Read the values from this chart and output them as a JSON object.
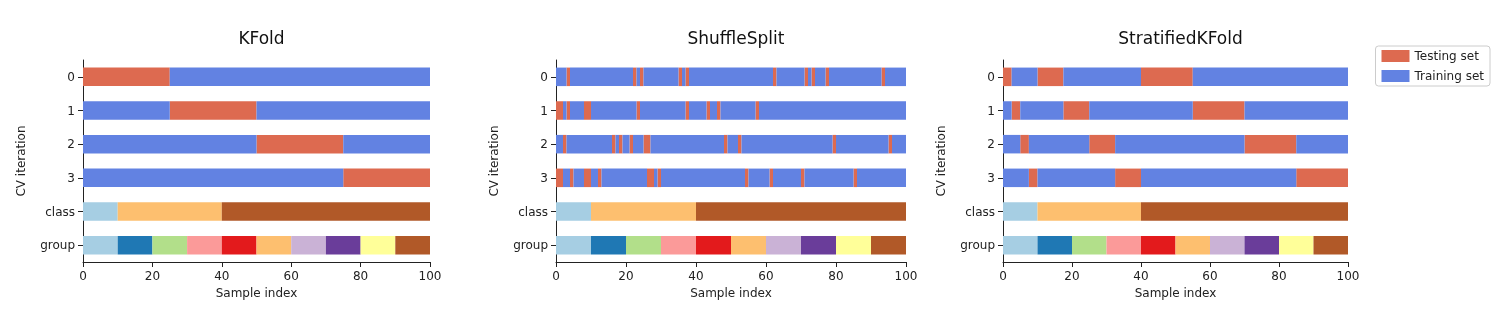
{
  "chart_data": [
    {
      "type": "bar",
      "orientation": "horizontal",
      "title": "KFold",
      "xlabel": "Sample index",
      "ylabel": "CV iteration",
      "categories": [
        "0",
        "1",
        "2",
        "3",
        "class",
        "group"
      ],
      "xlim": [
        0,
        100
      ],
      "xticks": [
        0,
        20,
        40,
        60,
        80,
        100
      ],
      "legend": false,
      "series": [
        {
          "color": "#dd6a50",
          "base": [
            0,
            25,
            50,
            75,
            null,
            null
          ],
          "values": [
            25,
            25,
            25,
            25,
            null,
            null
          ]
        },
        {
          "color": "#6282e2",
          "base": [
            25,
            0,
            0,
            0,
            null,
            null
          ],
          "values": [
            75,
            25,
            50,
            75,
            null,
            null
          ]
        },
        {
          "color": "#6282e2",
          "base": [
            null,
            50,
            75,
            null,
            null,
            null
          ],
          "values": [
            null,
            50,
            25,
            null,
            null,
            null
          ]
        },
        {
          "color": "#a6cee3",
          "base": [
            null,
            null,
            null,
            null,
            0,
            null
          ],
          "values": [
            null,
            null,
            null,
            null,
            10,
            null
          ]
        },
        {
          "color": "#fdbf6f",
          "base": [
            null,
            null,
            null,
            null,
            10,
            null
          ],
          "values": [
            null,
            null,
            null,
            null,
            30,
            null
          ]
        },
        {
          "color": "#b15928",
          "base": [
            null,
            null,
            null,
            null,
            40,
            null
          ],
          "values": [
            null,
            null,
            null,
            null,
            60,
            null
          ]
        },
        {
          "color": "#a6cee3",
          "base": [
            null,
            null,
            null,
            null,
            null,
            0
          ],
          "values": [
            null,
            null,
            null,
            null,
            null,
            10
          ]
        },
        {
          "color": "#1f78b4",
          "base": [
            null,
            null,
            null,
            null,
            null,
            10
          ],
          "values": [
            null,
            null,
            null,
            null,
            null,
            10
          ]
        },
        {
          "color": "#b2df8a",
          "base": [
            null,
            null,
            null,
            null,
            null,
            20
          ],
          "values": [
            null,
            null,
            null,
            null,
            null,
            10
          ]
        },
        {
          "color": "#fb9a99",
          "base": [
            null,
            null,
            null,
            null,
            null,
            30
          ],
          "values": [
            null,
            null,
            null,
            null,
            null,
            10
          ]
        },
        {
          "color": "#e31a1c",
          "base": [
            null,
            null,
            null,
            null,
            null,
            40
          ],
          "values": [
            null,
            null,
            null,
            null,
            null,
            10
          ]
        },
        {
          "color": "#fdbf6f",
          "base": [
            null,
            null,
            null,
            null,
            null,
            50
          ],
          "values": [
            null,
            null,
            null,
            null,
            null,
            10
          ]
        },
        {
          "color": "#cab2d6",
          "base": [
            null,
            null,
            null,
            null,
            null,
            60
          ],
          "values": [
            null,
            null,
            null,
            null,
            null,
            10
          ]
        },
        {
          "color": "#6a3d9a",
          "base": [
            null,
            null,
            null,
            null,
            null,
            70
          ],
          "values": [
            null,
            null,
            null,
            null,
            null,
            10
          ]
        },
        {
          "color": "#ffff99",
          "base": [
            null,
            null,
            null,
            null,
            null,
            80
          ],
          "values": [
            null,
            null,
            null,
            null,
            null,
            10
          ]
        },
        {
          "color": "#b15928",
          "base": [
            null,
            null,
            null,
            null,
            null,
            90
          ],
          "values": [
            null,
            null,
            null,
            null,
            null,
            10
          ]
        }
      ]
    },
    {
      "type": "bar",
      "orientation": "horizontal",
      "title": "ShuffleSplit",
      "xlabel": "Sample index",
      "ylabel": "CV iteration",
      "categories": [
        "0",
        "1",
        "2",
        "3",
        "class",
        "group"
      ],
      "xlim": [
        0,
        100
      ],
      "xticks": [
        0,
        20,
        40,
        60,
        80,
        100
      ],
      "legend": false,
      "series": [
        {
          "color": "#dd6a50",
          "base": [
            3,
            0,
            2,
            0,
            null,
            null
          ],
          "values": [
            1,
            2,
            1,
            2,
            null,
            null
          ]
        },
        {
          "color": "#dd6a50",
          "base": [
            22,
            3,
            16,
            4,
            null,
            null
          ],
          "values": [
            1,
            1,
            1,
            1,
            null,
            null
          ]
        },
        {
          "color": "#dd6a50",
          "base": [
            24,
            8,
            18,
            8,
            null,
            null
          ],
          "values": [
            1,
            2,
            1,
            2,
            null,
            null
          ]
        },
        {
          "color": "#dd6a50",
          "base": [
            35,
            23,
            21,
            12,
            null,
            null
          ],
          "values": [
            1,
            1,
            1,
            1,
            null,
            null
          ]
        },
        {
          "color": "#dd6a50",
          "base": [
            37,
            37,
            25,
            26,
            null,
            null
          ],
          "values": [
            1,
            1,
            2,
            2,
            null,
            null
          ]
        },
        {
          "color": "#dd6a50",
          "base": [
            62,
            43,
            48,
            29,
            null,
            null
          ],
          "values": [
            1,
            1,
            1,
            1,
            null,
            null
          ]
        },
        {
          "color": "#dd6a50",
          "base": [
            71,
            46,
            52,
            54,
            null,
            null
          ],
          "values": [
            1,
            1,
            1,
            1,
            null,
            null
          ]
        },
        {
          "color": "#dd6a50",
          "base": [
            73,
            57,
            79,
            61,
            null,
            null
          ],
          "values": [
            1,
            1,
            1,
            1,
            null,
            null
          ]
        },
        {
          "color": "#dd6a50",
          "base": [
            77,
            null,
            95,
            70,
            null,
            null
          ],
          "values": [
            1,
            null,
            1,
            1,
            null,
            null
          ]
        },
        {
          "color": "#dd6a50",
          "base": [
            93,
            null,
            null,
            85,
            null,
            null
          ],
          "values": [
            1,
            null,
            null,
            1,
            null,
            null
          ]
        },
        {
          "color": "#6282e2",
          "base": [
            0,
            2,
            0,
            2,
            null,
            null
          ],
          "values": [
            3,
            1,
            2,
            2,
            null,
            null
          ]
        },
        {
          "color": "#6282e2",
          "base": [
            4,
            4,
            3,
            5,
            null,
            null
          ],
          "values": [
            18,
            4,
            13,
            3,
            null,
            null
          ]
        },
        {
          "color": "#6282e2",
          "base": [
            23,
            10,
            17,
            10,
            null,
            null
          ],
          "values": [
            1,
            13,
            1,
            2,
            null,
            null
          ]
        },
        {
          "color": "#6282e2",
          "base": [
            25,
            24,
            19,
            13,
            null,
            null
          ],
          "values": [
            10,
            13,
            2,
            13,
            null,
            null
          ]
        },
        {
          "color": "#6282e2",
          "base": [
            36,
            38,
            22,
            28,
            null,
            null
          ],
          "values": [
            1,
            5,
            3,
            1,
            null,
            null
          ]
        },
        {
          "color": "#6282e2",
          "base": [
            38,
            44,
            27,
            30,
            null,
            null
          ],
          "values": [
            24,
            2,
            21,
            24,
            null,
            null
          ]
        },
        {
          "color": "#6282e2",
          "base": [
            63,
            47,
            49,
            55,
            null,
            null
          ],
          "values": [
            8,
            10,
            3,
            6,
            null,
            null
          ]
        },
        {
          "color": "#6282e2",
          "base": [
            72,
            58,
            53,
            62,
            null,
            null
          ],
          "values": [
            1,
            42,
            26,
            8,
            null,
            null
          ]
        },
        {
          "color": "#6282e2",
          "base": [
            74,
            null,
            80,
            71,
            null,
            null
          ],
          "values": [
            3,
            null,
            15,
            14,
            null,
            null
          ]
        },
        {
          "color": "#6282e2",
          "base": [
            78,
            null,
            96,
            86,
            null,
            null
          ],
          "values": [
            15,
            null,
            4,
            14,
            null,
            null
          ]
        },
        {
          "color": "#6282e2",
          "base": [
            94,
            null,
            null,
            null,
            null,
            null
          ],
          "values": [
            6,
            null,
            null,
            null,
            null,
            null
          ]
        },
        {
          "color": "#a6cee3",
          "base": [
            null,
            null,
            null,
            null,
            0,
            null
          ],
          "values": [
            null,
            null,
            null,
            null,
            10,
            null
          ]
        },
        {
          "color": "#fdbf6f",
          "base": [
            null,
            null,
            null,
            null,
            10,
            null
          ],
          "values": [
            null,
            null,
            null,
            null,
            30,
            null
          ]
        },
        {
          "color": "#b15928",
          "base": [
            null,
            null,
            null,
            null,
            40,
            null
          ],
          "values": [
            null,
            null,
            null,
            null,
            60,
            null
          ]
        },
        {
          "color": "#a6cee3",
          "base": [
            null,
            null,
            null,
            null,
            null,
            0
          ],
          "values": [
            null,
            null,
            null,
            null,
            null,
            10
          ]
        },
        {
          "color": "#1f78b4",
          "base": [
            null,
            null,
            null,
            null,
            null,
            10
          ],
          "values": [
            null,
            null,
            null,
            null,
            null,
            10
          ]
        },
        {
          "color": "#b2df8a",
          "base": [
            null,
            null,
            null,
            null,
            null,
            20
          ],
          "values": [
            null,
            null,
            null,
            null,
            null,
            10
          ]
        },
        {
          "color": "#fb9a99",
          "base": [
            null,
            null,
            null,
            null,
            null,
            30
          ],
          "values": [
            null,
            null,
            null,
            null,
            null,
            10
          ]
        },
        {
          "color": "#e31a1c",
          "base": [
            null,
            null,
            null,
            null,
            null,
            40
          ],
          "values": [
            null,
            null,
            null,
            null,
            null,
            10
          ]
        },
        {
          "color": "#fdbf6f",
          "base": [
            null,
            null,
            null,
            null,
            null,
            50
          ],
          "values": [
            null,
            null,
            null,
            null,
            null,
            10
          ]
        },
        {
          "color": "#cab2d6",
          "base": [
            null,
            null,
            null,
            null,
            null,
            60
          ],
          "values": [
            null,
            null,
            null,
            null,
            null,
            10
          ]
        },
        {
          "color": "#6a3d9a",
          "base": [
            null,
            null,
            null,
            null,
            null,
            70
          ],
          "values": [
            null,
            null,
            null,
            null,
            null,
            10
          ]
        },
        {
          "color": "#ffff99",
          "base": [
            null,
            null,
            null,
            null,
            null,
            80
          ],
          "values": [
            null,
            null,
            null,
            null,
            null,
            10
          ]
        },
        {
          "color": "#b15928",
          "base": [
            null,
            null,
            null,
            null,
            null,
            90
          ],
          "values": [
            null,
            null,
            null,
            null,
            null,
            10
          ]
        }
      ]
    },
    {
      "type": "bar",
      "orientation": "horizontal",
      "title": "StratifiedKFold",
      "xlabel": "Sample index",
      "ylabel": "CV iteration",
      "categories": [
        "0",
        "1",
        "2",
        "3",
        "class",
        "group"
      ],
      "xlim": [
        0,
        100
      ],
      "xticks": [
        0,
        20,
        40,
        60,
        80,
        100
      ],
      "legend": "top right",
      "series": [
        {
          "name": "Testing set",
          "color": "#dd6a50",
          "base": [
            0,
            2.5,
            5,
            7.5,
            null,
            null
          ],
          "values": [
            2.5,
            2.5,
            2.5,
            2.5,
            null,
            null
          ]
        },
        {
          "color": "#dd6a50",
          "base": [
            10,
            17.5,
            25,
            32.5,
            null,
            null
          ],
          "values": [
            7.5,
            7.5,
            7.5,
            7.5,
            null,
            null
          ]
        },
        {
          "color": "#dd6a50",
          "base": [
            40,
            55,
            70,
            85,
            null,
            null
          ],
          "values": [
            15,
            15,
            15,
            15,
            null,
            null
          ]
        },
        {
          "name": "Training set",
          "color": "#6282e2",
          "base": [
            2.5,
            0,
            0,
            0,
            null,
            null
          ],
          "values": [
            7.5,
            2.5,
            5,
            7.5,
            null,
            null
          ]
        },
        {
          "color": "#6282e2",
          "base": [
            17.5,
            5,
            7.5,
            10,
            null,
            null
          ],
          "values": [
            22.5,
            12.5,
            17.5,
            22.5,
            null,
            null
          ]
        },
        {
          "color": "#6282e2",
          "base": [
            55,
            25,
            32.5,
            40,
            null,
            null
          ],
          "values": [
            45,
            30,
            37.5,
            45,
            null,
            null
          ]
        },
        {
          "color": "#6282e2",
          "base": [
            null,
            70,
            85,
            null,
            null,
            null
          ],
          "values": [
            null,
            30,
            15,
            null,
            null,
            null
          ]
        },
        {
          "color": "#a6cee3",
          "base": [
            null,
            null,
            null,
            null,
            0,
            null
          ],
          "values": [
            null,
            null,
            null,
            null,
            10,
            null
          ]
        },
        {
          "color": "#fdbf6f",
          "base": [
            null,
            null,
            null,
            null,
            10,
            null
          ],
          "values": [
            null,
            null,
            null,
            null,
            30,
            null
          ]
        },
        {
          "color": "#b15928",
          "base": [
            null,
            null,
            null,
            null,
            40,
            null
          ],
          "values": [
            null,
            null,
            null,
            null,
            60,
            null
          ]
        },
        {
          "color": "#a6cee3",
          "base": [
            null,
            null,
            null,
            null,
            null,
            0
          ],
          "values": [
            null,
            null,
            null,
            null,
            null,
            10
          ]
        },
        {
          "color": "#1f78b4",
          "base": [
            null,
            null,
            null,
            null,
            null,
            10
          ],
          "values": [
            null,
            null,
            null,
            null,
            null,
            10
          ]
        },
        {
          "color": "#b2df8a",
          "base": [
            null,
            null,
            null,
            null,
            null,
            20
          ],
          "values": [
            null,
            null,
            null,
            null,
            null,
            10
          ]
        },
        {
          "color": "#fb9a99",
          "base": [
            null,
            null,
            null,
            null,
            null,
            30
          ],
          "values": [
            null,
            null,
            null,
            null,
            null,
            10
          ]
        },
        {
          "color": "#e31a1c",
          "base": [
            null,
            null,
            null,
            null,
            null,
            40
          ],
          "values": [
            null,
            null,
            null,
            null,
            null,
            10
          ]
        },
        {
          "color": "#fdbf6f",
          "base": [
            null,
            null,
            null,
            null,
            null,
            50
          ],
          "values": [
            null,
            null,
            null,
            null,
            null,
            10
          ]
        },
        {
          "color": "#cab2d6",
          "base": [
            null,
            null,
            null,
            null,
            null,
            60
          ],
          "values": [
            null,
            null,
            null,
            null,
            null,
            10
          ]
        },
        {
          "color": "#6a3d9a",
          "base": [
            null,
            null,
            null,
            null,
            null,
            70
          ],
          "values": [
            null,
            null,
            null,
            null,
            null,
            10
          ]
        },
        {
          "color": "#ffff99",
          "base": [
            null,
            null,
            null,
            null,
            null,
            80
          ],
          "values": [
            null,
            null,
            null,
            null,
            null,
            10
          ]
        },
        {
          "color": "#b15928",
          "base": [
            null,
            null,
            null,
            null,
            null,
            90
          ],
          "values": [
            null,
            null,
            null,
            null,
            null,
            10
          ]
        }
      ]
    }
  ]
}
